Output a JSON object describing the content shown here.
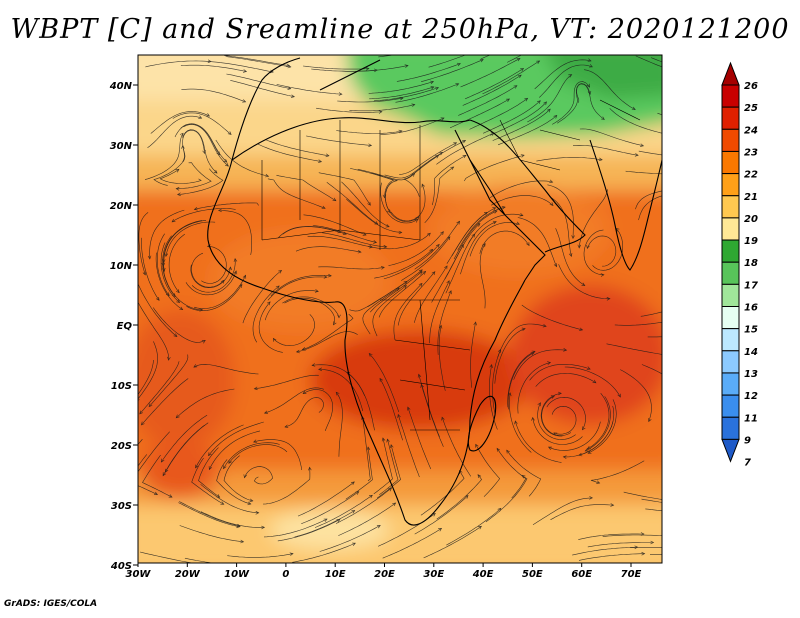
{
  "title": "WBPT [C] and Sreamline at 250hPa, VT: 2020121200",
  "footer": "GrADS: IGES/COLA",
  "axes": {
    "lat_labels": [
      "40N",
      "30N",
      "20N",
      "10N",
      "EQ",
      "10S",
      "20S",
      "30S",
      "40S"
    ],
    "lon_labels": [
      "30W",
      "20W",
      "10W",
      "0",
      "10E",
      "20E",
      "30E",
      "40E",
      "50E",
      "60E",
      "70E"
    ]
  },
  "colorbar": {
    "labels": [
      "26",
      "25",
      "24",
      "23",
      "22",
      "21",
      "20",
      "19",
      "18",
      "17",
      "16",
      "15",
      "14",
      "13",
      "12",
      "11",
      "9",
      "7"
    ],
    "colors": [
      "#a50000",
      "#c80000",
      "#e02000",
      "#f04a00",
      "#fa7800",
      "#ffa018",
      "#ffc850",
      "#ffe896",
      "#2fa832",
      "#58c45a",
      "#a0e69a",
      "#e6fff2",
      "#bce8ff",
      "#8ccaff",
      "#5aacf8",
      "#3a8eee",
      "#2a72dc",
      "#1e5ac8"
    ]
  },
  "colors": {
    "green_zone": "#5ac95e",
    "hot_core": "#d83a10",
    "warm": "#f26a1e",
    "mid": "#f8a040",
    "cool": "#f7c46c",
    "pale": "#fde09a"
  }
}
